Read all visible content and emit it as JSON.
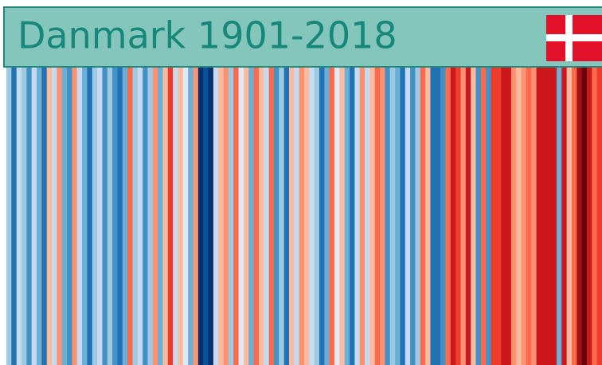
{
  "chart_data": {
    "type": "stripes",
    "title": "Danmark 1901-2018",
    "stripe_colors": [
      "#9ecae1",
      "#2171b5",
      "#c6dbef",
      "#9ecae1",
      "#4292c6",
      "#c6dbef",
      "#6baed6",
      "#2171b5",
      "#fcbba1",
      "#c6dbef",
      "#fc9272",
      "#6baed6",
      "#4292c6",
      "#fc9272",
      "#c6dbef",
      "#6baed6",
      "#2171b5",
      "#9ecae1",
      "#c6dbef",
      "#4292c6",
      "#9ecae1",
      "#4292c6",
      "#2171b5",
      "#6baed6",
      "#fb6a4a",
      "#9ecae1",
      "#c6dbef",
      "#4292c6",
      "#9ecae1",
      "#fc9272",
      "#6baed6",
      "#fcbba1",
      "#ef3b2c",
      "#c6dbef",
      "#fcbba1",
      "#deebf7",
      "#6baed6",
      "#fc9272",
      "#08306b",
      "#08519c",
      "#08306b",
      "#c6dbef",
      "#fcbba1",
      "#fc9272",
      "#9ecae1",
      "#fb6a4a",
      "#deebf7",
      "#fcbba1",
      "#6baed6",
      "#fb6a4a",
      "#fcbba1",
      "#c6dbef",
      "#fb6a4a",
      "#4292c6",
      "#9ecae1",
      "#2171b5",
      "#fcbba1",
      "#c6dbef",
      "#fc9272",
      "#fcbba1",
      "#c6dbef",
      "#9ecae1",
      "#2171b5",
      "#6baed6",
      "#fb6a4a",
      "#deebf7",
      "#fcbba1",
      "#6baed6",
      "#2171b5",
      "#c6dbef",
      "#fc9272",
      "#c6dbef",
      "#fcbba1",
      "#fb6a4a",
      "#fc9272",
      "#4292c6",
      "#9ecae1",
      "#6baed6",
      "#2171b5",
      "#c6dbef",
      "#4292c6",
      "#9ecae1",
      "#fb6a4a",
      "#fcbba1",
      "#2171b5",
      "#2171b5",
      "#4292c6",
      "#fb6a4a",
      "#cb181d",
      "#ef3b2c",
      "#fc9272",
      "#cb181d",
      "#fcbba1",
      "#4292c6",
      "#fb6a4a",
      "#4292c6",
      "#ef3b2c",
      "#ef3b2c",
      "#cb181d",
      "#cb181d",
      "#fc9272",
      "#fcbba1",
      "#fc9272",
      "#fb6a4a",
      "#fc9272",
      "#cb181d",
      "#cb181d",
      "#cb181d",
      "#cb181d",
      "#6baed6",
      "#cb181d",
      "#fcbba1",
      "#fb6a4a",
      "#a50f15",
      "#67000d",
      "#cb181d",
      "#fb6a4a",
      "#ef3b2c"
    ]
  }
}
